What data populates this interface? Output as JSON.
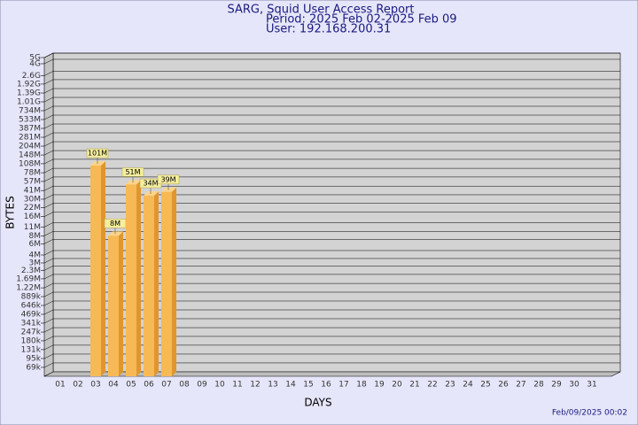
{
  "chart_data": {
    "type": "bar3d",
    "title": "SARG, Squid User Access Report",
    "subtitle": [
      "Period: 2025 Feb 02-2025 Feb 09",
      "User: 192.168.200.31"
    ],
    "x_label": "DAYS",
    "y_label": "BYTES",
    "footer": "Feb/09/2025 00:02",
    "categories": [
      "01",
      "02",
      "03",
      "04",
      "05",
      "06",
      "07",
      "08",
      "09",
      "10",
      "11",
      "12",
      "13",
      "14",
      "15",
      "16",
      "17",
      "18",
      "19",
      "20",
      "21",
      "22",
      "23",
      "24",
      "25",
      "26",
      "27",
      "28",
      "29",
      "30",
      "31"
    ],
    "values": [
      null,
      null,
      101000000,
      8000000,
      51000000,
      34000000,
      39000000,
      null,
      null,
      null,
      null,
      null,
      null,
      null,
      null,
      null,
      null,
      null,
      null,
      null,
      null,
      null,
      null,
      null,
      null,
      null,
      null,
      null,
      null,
      null,
      null
    ],
    "value_labels": [
      null,
      null,
      "101M",
      "8M",
      "51M",
      "34M",
      "39M",
      null,
      null,
      null,
      null,
      null,
      null,
      null,
      null,
      null,
      null,
      null,
      null,
      null,
      null,
      null,
      null,
      null,
      null,
      null,
      null,
      null,
      null,
      null,
      null
    ],
    "color": "#f7b955",
    "log_scale": true,
    "grid": true,
    "ylim": [
      50000,
      5000000000
    ],
    "yticks": [
      {
        "value": 69000,
        "label": "69k"
      },
      {
        "value": 95000,
        "label": "95k"
      },
      {
        "value": 131000,
        "label": "131k"
      },
      {
        "value": 180000,
        "label": "180k"
      },
      {
        "value": 247000,
        "label": "247k"
      },
      {
        "value": 341000,
        "label": "341k"
      },
      {
        "value": 469000,
        "label": "469k"
      },
      {
        "value": 646000,
        "label": "646k"
      },
      {
        "value": 889000,
        "label": "889k"
      },
      {
        "value": 1220000,
        "label": "1.22M"
      },
      {
        "value": 1690000,
        "label": "1.69M"
      },
      {
        "value": 2300000,
        "label": "2.3M"
      },
      {
        "value": 3000000,
        "label": "3M"
      },
      {
        "value": 4000000,
        "label": "4M"
      },
      {
        "value": 6000000,
        "label": "6M"
      },
      {
        "value": 8000000,
        "label": "8M"
      },
      {
        "value": 11000000,
        "label": "11M"
      },
      {
        "value": 16000000,
        "label": "16M"
      },
      {
        "value": 22000000,
        "label": "22M"
      },
      {
        "value": 30000000,
        "label": "30M"
      },
      {
        "value": 41000000,
        "label": "41M"
      },
      {
        "value": 57000000,
        "label": "57M"
      },
      {
        "value": 78000000,
        "label": "78M"
      },
      {
        "value": 108000000,
        "label": "108M"
      },
      {
        "value": 148000000,
        "label": "148M"
      },
      {
        "value": 204000000,
        "label": "204M"
      },
      {
        "value": 281000000,
        "label": "281M"
      },
      {
        "value": 387000000,
        "label": "387M"
      },
      {
        "value": 533000000,
        "label": "533M"
      },
      {
        "value": 734000000,
        "label": "734M"
      },
      {
        "value": 1010000000,
        "label": "1.01G"
      },
      {
        "value": 1390000000,
        "label": "1.39G"
      },
      {
        "value": 1920000000,
        "label": "1.92G"
      },
      {
        "value": 2600000000,
        "label": "2.6G"
      },
      {
        "value": 4000000000,
        "label": "4G"
      },
      {
        "value": 5000000000,
        "label": "5G"
      }
    ]
  }
}
